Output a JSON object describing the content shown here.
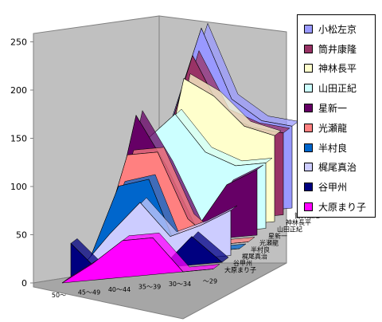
{
  "chart_data": {
    "type": "area",
    "subtype": "3d-area",
    "categories": [
      "50～",
      "45～49",
      "40～44",
      "35～39",
      "30～34",
      "～29"
    ],
    "yticks": [
      "0",
      "50",
      "100",
      "150",
      "200",
      "250"
    ],
    "ylim": [
      0,
      250
    ],
    "grid": false,
    "legend_position": "right",
    "series": [
      {
        "name": "小松左京",
        "color": "#9999ff",
        "values": [
          0,
          120,
          230,
          140,
          110,
          100
        ]
      },
      {
        "name": "筒井康隆",
        "color": "#993366",
        "values": [
          0,
          90,
          205,
          130,
          110,
          100
        ]
      },
      {
        "name": "神林長平",
        "color": "#ffffcc",
        "values": [
          15,
          20,
          185,
          160,
          120,
          105
        ]
      },
      {
        "name": "山田正紀",
        "color": "#ccffff",
        "values": [
          10,
          120,
          150,
          100,
          80,
          80
        ]
      },
      {
        "name": "星新一",
        "color": "#660066",
        "values": [
          0,
          160,
          95,
          15,
          65,
          80
        ]
      },
      {
        "name": "光瀬龍",
        "color": "#ff8080",
        "values": [
          0,
          120,
          120,
          35,
          0,
          0
        ]
      },
      {
        "name": "半村良",
        "color": "#0066cc",
        "values": [
          0,
          90,
          95,
          0,
          0,
          0
        ]
      },
      {
        "name": "梶尾真治",
        "color": "#ccccff",
        "values": [
          0,
          40,
          75,
          30,
          40,
          55
        ]
      },
      {
        "name": "谷甲州",
        "color": "#000080",
        "values": [
          40,
          0,
          15,
          0,
          35,
          0
        ]
      },
      {
        "name": "大原まり子",
        "color": "#ff00ff",
        "values": [
          0,
          20,
          45,
          45,
          0,
          0
        ]
      }
    ]
  }
}
